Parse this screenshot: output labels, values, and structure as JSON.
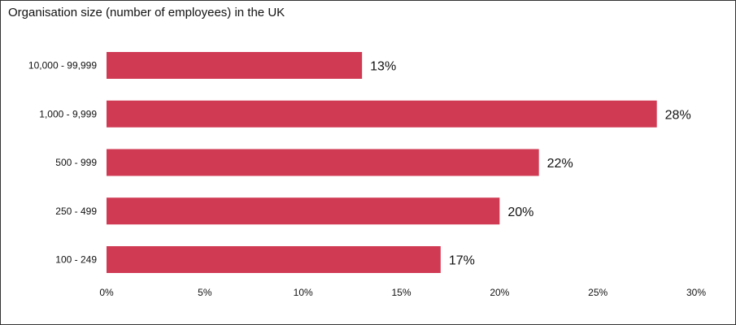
{
  "chart_data": {
    "type": "bar",
    "orientation": "horizontal",
    "title": "Organisation size (number of employees) in the UK",
    "xlabel": "",
    "ylabel": "",
    "categories": [
      "10,000 - 99,999",
      "1,000 - 9,999",
      "500 - 999",
      "250 - 499",
      "100 - 249"
    ],
    "values": [
      13,
      28,
      22,
      20,
      17
    ],
    "value_labels": [
      "13%",
      "28%",
      "22%",
      "20%",
      "17%"
    ],
    "xlim": [
      0,
      30
    ],
    "x_ticks": [
      0,
      5,
      10,
      15,
      20,
      25,
      30
    ],
    "x_tick_labels": [
      "0%",
      "5%",
      "10%",
      "15%",
      "20%",
      "25%",
      "30%"
    ],
    "grid": false,
    "legend": "none",
    "bar_color": "#d03a53"
  }
}
